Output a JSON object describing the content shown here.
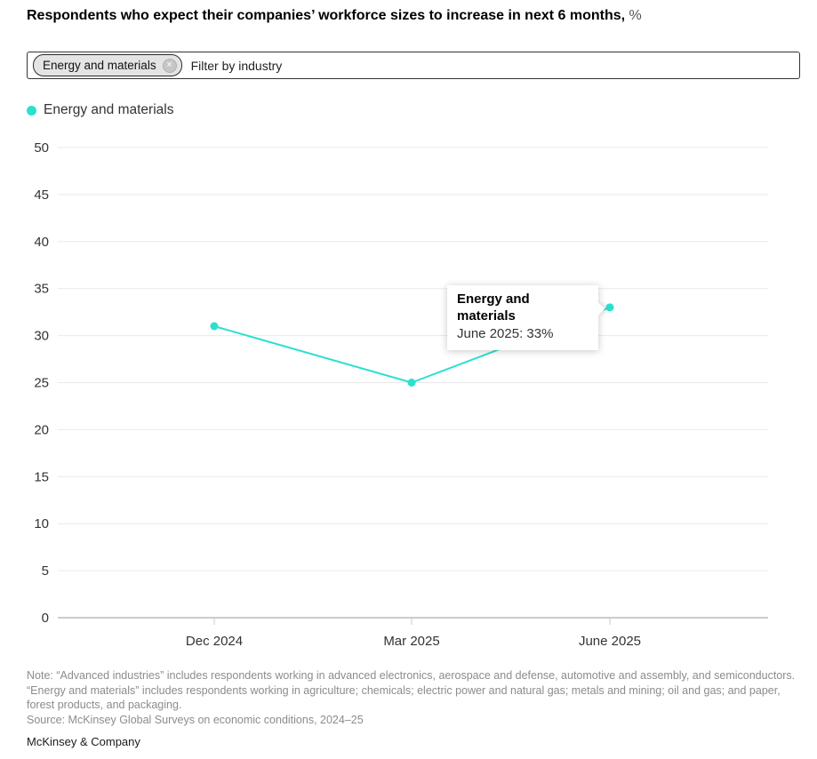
{
  "title": {
    "main": "Respondents who expect their companies’ workforce sizes to increase in next 6 months,",
    "suffix": " %"
  },
  "filter": {
    "selected_tag": "Energy and materials",
    "remove_icon": "×",
    "placeholder": "Filter by industry"
  },
  "legend": [
    {
      "label": "Energy and materials",
      "color": "#2be0d0"
    }
  ],
  "chart_data": {
    "type": "line",
    "title": "Respondents who expect their companies’ workforce sizes to increase in next 6 months, %",
    "x": [
      "Dec 2024",
      "Mar 2025",
      "June 2025"
    ],
    "series": [
      {
        "name": "Energy and materials",
        "color": "#2be0d0",
        "values": [
          31,
          25,
          33
        ]
      }
    ],
    "ylim": [
      0,
      50
    ],
    "ytick_step": 5,
    "yticks": [
      0,
      5,
      10,
      15,
      20,
      25,
      30,
      35,
      40,
      45,
      50
    ],
    "grid": "horizontal",
    "legend_position": "top-left"
  },
  "tooltip": {
    "title": "Energy and materials",
    "value_line": "June 2025: 33%"
  },
  "notes": {
    "note": "Note: “Advanced industries” includes respondents working in advanced electronics, aerospace and defense, automotive and assembly, and semiconductors. “Energy and materials” includes respondents working in agriculture; chemicals; electric power and natural gas; metals and mining; oil and gas; and paper, forest products, and packaging.",
    "source": "Source: McKinsey Global Surveys on economic conditions, 2024–25"
  },
  "footer": {
    "brand": "McKinsey & Company"
  }
}
